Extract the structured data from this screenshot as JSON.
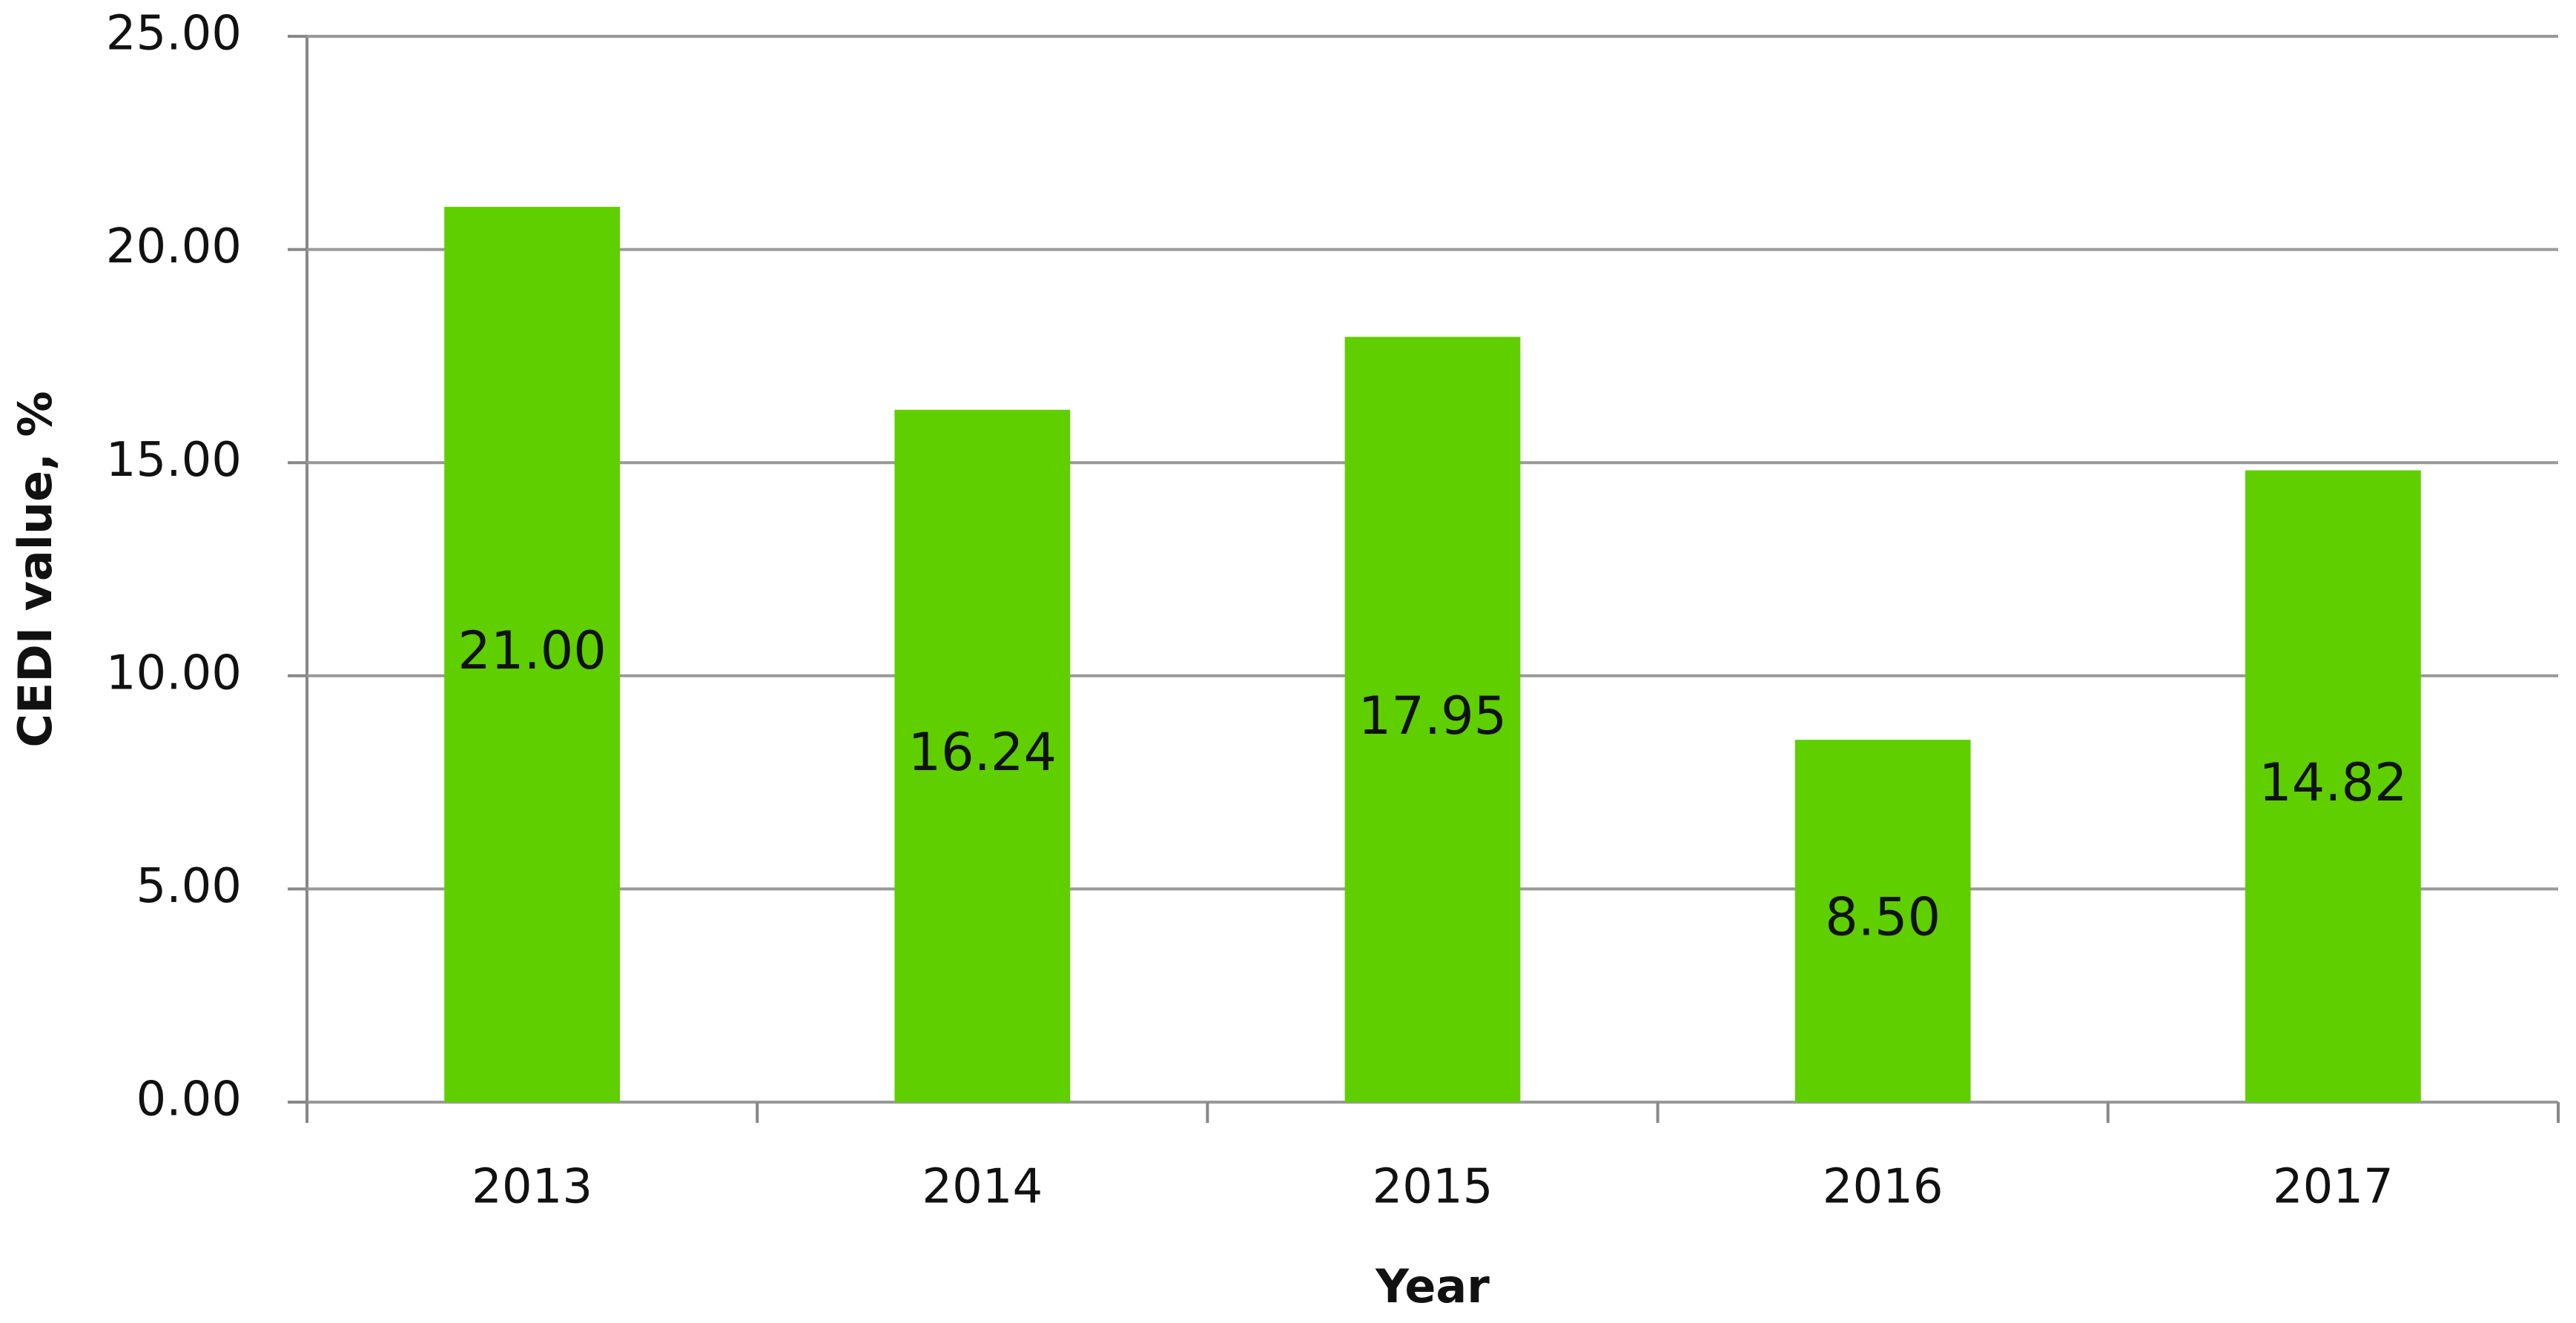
{
  "chart_data": {
    "type": "bar",
    "categories": [
      "2013",
      "2014",
      "2015",
      "2016",
      "2017"
    ],
    "values": [
      21.0,
      16.24,
      17.95,
      8.5,
      14.82
    ],
    "value_labels": [
      "21.00",
      "16.24",
      "17.95",
      "8.50",
      "14.82"
    ],
    "color": "#5fcf00",
    "ylim": [
      0,
      25
    ],
    "yticks": [
      {
        "value": 0,
        "label": "0.00"
      },
      {
        "value": 5,
        "label": "5.00"
      },
      {
        "value": 10,
        "label": "10.00"
      },
      {
        "value": 15,
        "label": "15.00"
      },
      {
        "value": 20,
        "label": "20.00"
      },
      {
        "value": 25,
        "label": "25.00"
      }
    ],
    "grid": true,
    "xlabel": "Year",
    "ylabel": "CEDI value, %"
  }
}
